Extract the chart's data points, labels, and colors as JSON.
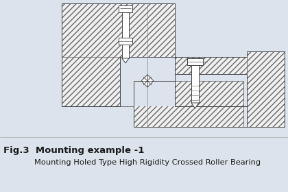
{
  "bg_color": "#dce3ec",
  "line_color": "#444444",
  "hatch_color": "#666666",
  "white": "#ffffff",
  "fill_light": "#f0f0f0",
  "title_line1": "Fig.3  Mounting example -1",
  "title_line2": "Mounting Holed Type High Rigidity Crossed Roller Bearing",
  "title_fontsize1": 9.5,
  "title_fontsize2": 8.2
}
